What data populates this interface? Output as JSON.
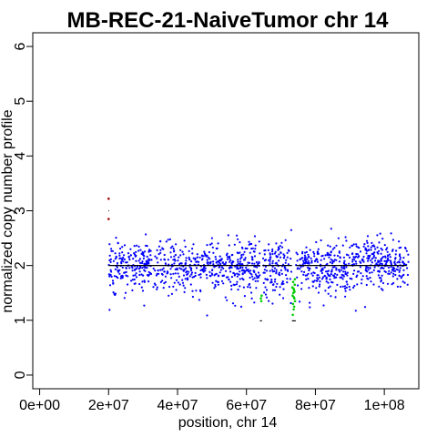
{
  "chart_data": {
    "type": "scatter",
    "title": "MB-REC-21-NaiveTumor chr 14",
    "xlabel": "position, chr 14",
    "ylabel": "normalized copy number profile",
    "xlim": [
      -2000000,
      110000000
    ],
    "ylim": [
      -0.25,
      6.25
    ],
    "xticks": [
      0,
      20000000,
      40000000,
      60000000,
      80000000,
      100000000
    ],
    "xtick_labels": [
      "0e+00",
      "2e+07",
      "4e+07",
      "6e+07",
      "8e+07",
      "1e+08"
    ],
    "yticks": [
      0,
      1,
      2,
      3,
      4,
      5,
      6
    ],
    "ytick_labels": [
      "0",
      "1",
      "2",
      "3",
      "4",
      "5",
      "6"
    ],
    "grid": false,
    "colors": {
      "normal": "#0000ff",
      "loss": "#00cc00",
      "gain": "#cc0000",
      "segment": "#000000"
    },
    "series": [
      {
        "role": "gain",
        "points": [
          [
            20000000,
            3.22
          ],
          [
            20000000,
            2.85
          ]
        ]
      },
      {
        "role": "loss",
        "points": [
          [
            64300000,
            1.35
          ],
          [
            64400000,
            1.45
          ],
          [
            64200000,
            1.4
          ],
          [
            73300000,
            1.6
          ],
          [
            73400000,
            1.45
          ],
          [
            73500000,
            1.3
          ],
          [
            73600000,
            1.5
          ],
          [
            73700000,
            1.2
          ],
          [
            73800000,
            1.55
          ],
          [
            73900000,
            1.4
          ],
          [
            74000000,
            1.65
          ],
          [
            74100000,
            1.35
          ],
          [
            73450000,
            1.1
          ],
          [
            73650000,
            1.58
          ],
          [
            73850000,
            1.25
          ],
          [
            73550000,
            1.7
          ],
          [
            73750000,
            1.42
          ],
          [
            73950000,
            1.52
          ],
          [
            74050000,
            1.75
          ]
        ]
      }
    ],
    "segments": [
      {
        "x_start": 20000000,
        "x_end": 20200000,
        "y": 3.22
      },
      {
        "x_start": 20000000,
        "x_end": 20200000,
        "y": 3.0
      },
      {
        "x_start": 20000000,
        "x_end": 20200000,
        "y": 2.85
      },
      {
        "x_start": 20000000,
        "x_end": 64000000,
        "y": 2.0
      },
      {
        "x_start": 63900000,
        "x_end": 64500000,
        "y": 0.99
      },
      {
        "x_start": 64600000,
        "x_end": 73200000,
        "y": 2.0
      },
      {
        "x_start": 73200000,
        "x_end": 74300000,
        "y": 0.99
      },
      {
        "x_start": 74400000,
        "x_end": 106500000,
        "y": 2.0
      }
    ],
    "normal_band": {
      "x_start": 20000000,
      "x_end": 107000000,
      "center": 2.0,
      "spread": 0.22,
      "n_points": 1300
    }
  }
}
